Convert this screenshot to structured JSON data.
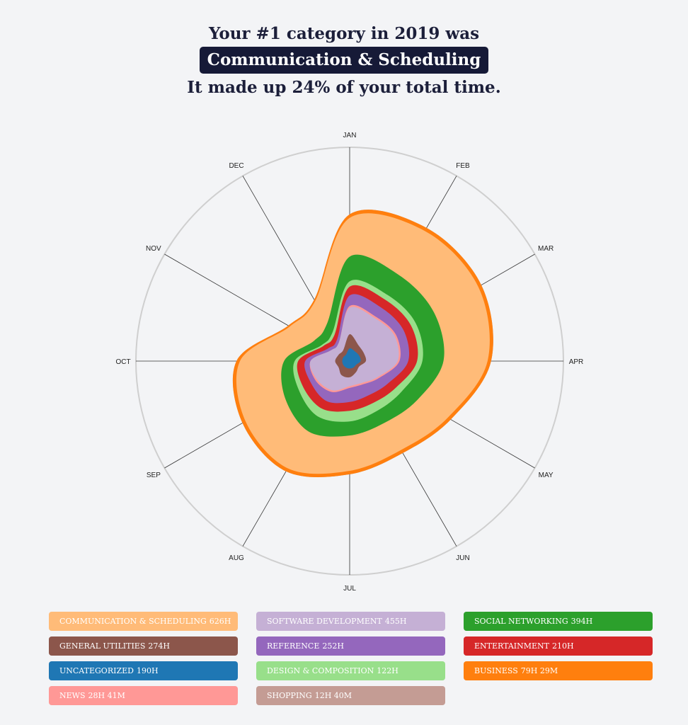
{
  "header": {
    "line1": "Your #1 category in 2019 was",
    "highlight": "Communication & Scheduling",
    "line3": "It made up 24% of your total time."
  },
  "chart_data": {
    "type": "area",
    "subtype": "radial-stacked-streamgraph",
    "x": [
      "JAN",
      "FEB",
      "MAR",
      "APR",
      "MAY",
      "JUN",
      "JUL",
      "AUG",
      "SEP",
      "OCT",
      "NOV",
      "DEC"
    ],
    "series": [
      {
        "name": "UNCATEGORIZED",
        "total": "190H",
        "color": "#1f77b4",
        "values": [
          4,
          3,
          3,
          3,
          1,
          1,
          1,
          1,
          1,
          1,
          1,
          1
        ]
      },
      {
        "name": "GENERAL UTILITIES",
        "total": "274H",
        "color": "#8c564b",
        "values": [
          8,
          4,
          3,
          3,
          2,
          3,
          5,
          5,
          3,
          4,
          3,
          3
        ]
      },
      {
        "name": "SOFTWARE DEVELOPMENT",
        "total": "455H",
        "color": "#c5b0d5",
        "values": [
          15,
          18,
          20,
          18,
          12,
          7,
          5,
          10,
          14,
          14,
          5,
          5
        ]
      },
      {
        "name": "NEWS",
        "total": "28H 41M",
        "color": "#ff9896",
        "values": [
          1,
          1,
          1,
          1,
          1,
          1,
          1,
          1,
          1,
          0,
          0,
          0
        ]
      },
      {
        "name": "REFERENCE",
        "total": "252H",
        "color": "#9467bd",
        "values": [
          6,
          6,
          5,
          5,
          6,
          7,
          8,
          6,
          3,
          3,
          2,
          2
        ]
      },
      {
        "name": "ENTERTAINMENT",
        "total": "210H",
        "color": "#d62728",
        "values": [
          5,
          5,
          5,
          5,
          5,
          5,
          5,
          5,
          5,
          4,
          3,
          3
        ]
      },
      {
        "name": "DESIGN & COMPOSITION",
        "total": "122H",
        "color": "#98df8a",
        "values": [
          3,
          3,
          3,
          3,
          4,
          5,
          6,
          5,
          3,
          2,
          1,
          2
        ]
      },
      {
        "name": "SOCIAL NETWORKING",
        "total": "394H",
        "color": "#2ca02c",
        "values": [
          14,
          13,
          12,
          12,
          10,
          8,
          8,
          10,
          9,
          6,
          5,
          6
        ]
      },
      {
        "name": "COMMUNICATION & SCHEDULING",
        "total": "626H",
        "color": "#ffbb78",
        "values": [
          22,
          29,
          29,
          25,
          20,
          18,
          20,
          24,
          26,
          25,
          16,
          14
        ]
      },
      {
        "name": "BUSINESS",
        "total": "79H 29M",
        "color": "#ff7f0e",
        "values": [
          2,
          2,
          2,
          2,
          2,
          2,
          2,
          2,
          2,
          2,
          1,
          1
        ]
      },
      {
        "name": "SHOPPING",
        "total": "12H 40M",
        "color": "#c49c94",
        "values": [
          0,
          0,
          0,
          0,
          0,
          0,
          0,
          0,
          0,
          0,
          0,
          0
        ]
      }
    ],
    "grid": true,
    "legend": "bottom"
  },
  "legend": [
    {
      "name": "COMMUNICATION & SCHEDULING",
      "total": "626H",
      "color": "#ffbb78"
    },
    {
      "name": "SOFTWARE DEVELOPMENT",
      "total": "455H",
      "color": "#c5b0d5"
    },
    {
      "name": "SOCIAL NETWORKING",
      "total": "394H",
      "color": "#2ca02c"
    },
    {
      "name": "GENERAL UTILITIES",
      "total": "274H",
      "color": "#8c564b"
    },
    {
      "name": "REFERENCE",
      "total": "252H",
      "color": "#9467bd"
    },
    {
      "name": "ENTERTAINMENT",
      "total": "210H",
      "color": "#d62728"
    },
    {
      "name": "UNCATEGORIZED",
      "total": "190H",
      "color": "#1f77b4"
    },
    {
      "name": "DESIGN & COMPOSITION",
      "total": "122H",
      "color": "#98df8a"
    },
    {
      "name": "BUSINESS",
      "total": "79H 29M",
      "color": "#ff7f0e"
    },
    {
      "name": "NEWS",
      "total": "28H 41M",
      "color": "#ff9896"
    },
    {
      "name": "SHOPPING",
      "total": "12H 40M",
      "color": "#c49c94"
    }
  ]
}
